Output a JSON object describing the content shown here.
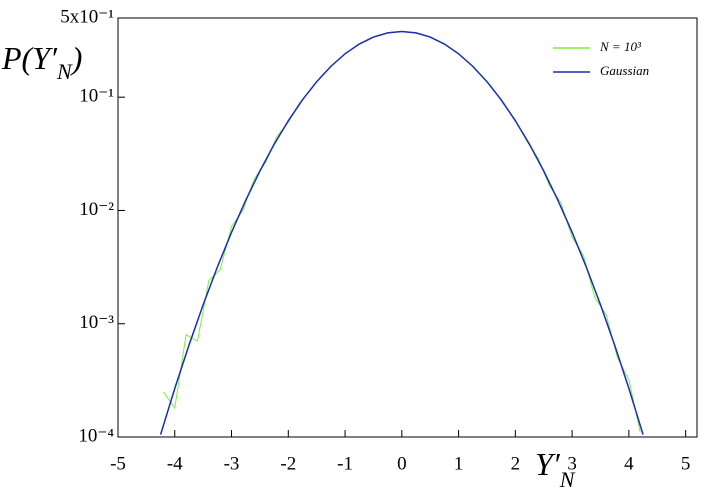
{
  "chart_data": {
    "type": "line",
    "log_y": true,
    "y_label": {
      "text": "P(Y′",
      "sub": "N",
      "close": ")"
    },
    "x_label": {
      "text": "Y′",
      "sub": "N"
    },
    "xlim": [
      -5,
      5.2
    ],
    "xticks": [
      -5,
      -4,
      -3,
      -2,
      -1,
      0,
      1,
      2,
      3,
      4,
      5
    ],
    "ylim": [
      0.0001,
      0.5
    ],
    "yticks": [
      {
        "value": 0.5,
        "label": "5x10⁻¹"
      },
      {
        "value": 0.1,
        "label": "10⁻¹"
      },
      {
        "value": 0.01,
        "label": "10⁻²"
      },
      {
        "value": 0.001,
        "label": "10⁻³"
      },
      {
        "value": 0.0001,
        "label": "10⁻⁴"
      }
    ],
    "legend": "top-right",
    "series": [
      {
        "name": "N = 10³",
        "color": "#7cf03c",
        "x": [
          -4.2,
          -4.0,
          -3.8,
          -3.6,
          -3.4,
          -3.2,
          -3.0,
          -2.8,
          -2.6,
          -2.4,
          -2.2,
          -2.0,
          -1.8,
          -1.6,
          -1.4,
          -1.2,
          -1.0,
          -0.8,
          -0.6,
          -0.4,
          -0.2,
          0,
          0.2,
          0.4,
          0.6,
          0.8,
          1.0,
          1.2,
          1.4,
          1.6,
          1.8,
          2.0,
          2.2,
          2.4,
          2.6,
          2.8,
          3.0,
          3.2,
          3.4,
          3.6,
          3.8,
          4.0,
          4.2
        ],
        "values": [
          0.00025,
          0.00018,
          0.0008,
          0.0007,
          0.0024,
          0.003,
          0.0072,
          0.01,
          0.019,
          0.0265,
          0.045,
          0.06,
          0.089,
          0.117,
          0.157,
          0.197,
          0.242,
          0.284,
          0.323,
          0.353,
          0.373,
          0.38,
          0.373,
          0.354,
          0.322,
          0.285,
          0.241,
          0.198,
          0.156,
          0.12,
          0.086,
          0.063,
          0.041,
          0.029,
          0.0165,
          0.0118,
          0.0058,
          0.004,
          0.0017,
          0.0012,
          0.0005,
          0.00032,
          0.00011
        ]
      },
      {
        "name": "Gaussian",
        "color": "#1a2fb0",
        "x": [
          -4.25,
          -4.0,
          -3.75,
          -3.5,
          -3.25,
          -3.0,
          -2.75,
          -2.5,
          -2.25,
          -2.0,
          -1.75,
          -1.5,
          -1.25,
          -1.0,
          -0.75,
          -0.5,
          -0.25,
          0,
          0.25,
          0.5,
          0.75,
          1.0,
          1.25,
          1.5,
          1.75,
          2.0,
          2.25,
          2.5,
          2.75,
          3.0,
          3.25,
          3.5,
          3.75,
          4.0,
          4.25
        ],
        "values": [
          0.000105,
          0.000268,
          0.000646,
          0.00147,
          0.00316,
          0.00641,
          0.0123,
          0.0223,
          0.0383,
          0.0619,
          0.0948,
          0.137,
          0.1871,
          0.2415,
          0.2944,
          0.3393,
          0.3694,
          0.38,
          0.3694,
          0.3393,
          0.2944,
          0.2415,
          0.1871,
          0.137,
          0.0948,
          0.0619,
          0.0383,
          0.0223,
          0.0123,
          0.00641,
          0.00316,
          0.00147,
          0.000646,
          0.000268,
          0.000105
        ]
      }
    ]
  }
}
